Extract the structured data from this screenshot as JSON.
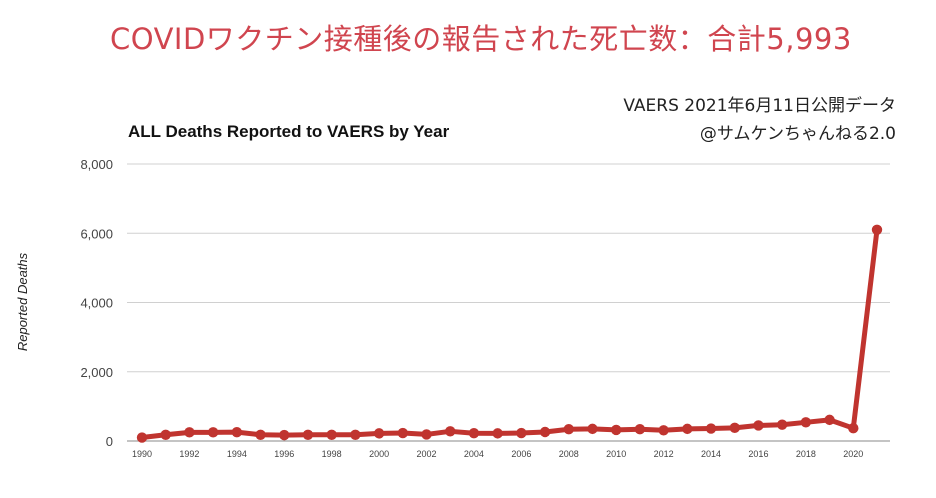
{
  "headline": "COVIDワクチン接種後の報告された死亡数：合計5,993",
  "source_line1": "VAERS 2021年6月11日公開データ",
  "source_line2": "@サムケンちゃんねる2.0",
  "colors": {
    "headline": "#d0454f",
    "series": "#c0342f",
    "grid": "#d0d0d0"
  },
  "chart_data": {
    "type": "line",
    "title": "ALL Deaths Reported to VAERS by Year",
    "xlabel": "",
    "ylabel": "Reported Deaths",
    "ylim": [
      0,
      8000
    ],
    "yticks": [
      0,
      2000,
      4000,
      6000,
      8000
    ],
    "ytick_labels": [
      "0",
      "2,000",
      "4,000",
      "6,000",
      "8,000"
    ],
    "xtick_labels": [
      "1990",
      "1992",
      "1994",
      "1996",
      "1998",
      "2000",
      "2002",
      "2004",
      "2006",
      "2008",
      "2010",
      "2012",
      "2014",
      "2016",
      "2018",
      "2020"
    ],
    "grid": true,
    "legend": "none",
    "x": [
      1990,
      1991,
      1992,
      1993,
      1994,
      1995,
      1996,
      1997,
      1998,
      1999,
      2000,
      2001,
      2002,
      2003,
      2004,
      2005,
      2006,
      2007,
      2008,
      2009,
      2010,
      2011,
      2012,
      2013,
      2014,
      2015,
      2016,
      2017,
      2018,
      2019,
      2020,
      2021
    ],
    "values": [
      100,
      180,
      250,
      250,
      255,
      180,
      170,
      180,
      180,
      180,
      220,
      230,
      190,
      280,
      225,
      220,
      230,
      260,
      340,
      350,
      320,
      340,
      310,
      350,
      360,
      380,
      450,
      470,
      540,
      610,
      370,
      6100
    ]
  }
}
